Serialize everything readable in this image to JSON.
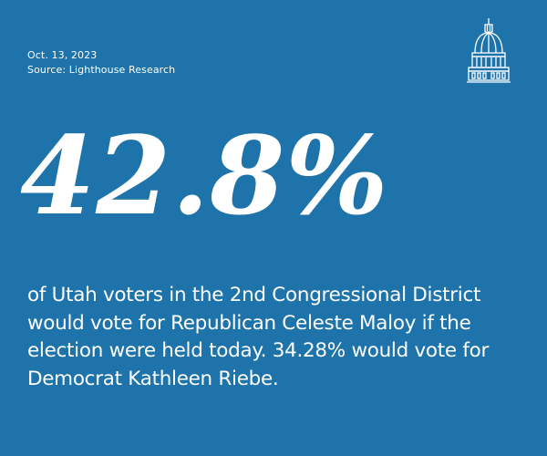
{
  "meta": {
    "date": "Oct. 13, 2023",
    "source": "Source: Lighthouse Research"
  },
  "logo": {
    "icon": "capitol-dome-icon"
  },
  "headline_stat": "42.8%",
  "description": "of Utah voters in the 2nd Congressional District would vote for Republican Celeste Maloy if the election were held today. 34.28% would vote for Democrat Kathleen Riebe.",
  "colors": {
    "background": "#1d73aa",
    "text": "#ffffff"
  }
}
